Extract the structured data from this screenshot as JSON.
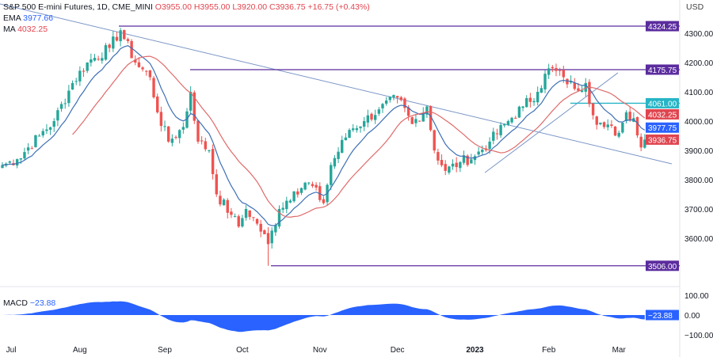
{
  "header": {
    "symbol": "S&P 500 E-mini Futures, 1D, CME_MINI",
    "o": "O3955.00",
    "h": "H3955.00",
    "l": "L3920.00",
    "c": "C3936.75",
    "change": "+16.75 (+0.43%)",
    "ema_label": "EMA",
    "ema_value": "3977.66",
    "ma_label": "MA",
    "ma_value": "4032.25",
    "macd_label": "MACD",
    "macd_value": "−23.88"
  },
  "chart_data": {
    "type": "candlestick",
    "title": "S&P 500 E-mini Futures, 1D, CME_MINI",
    "currency": "USD",
    "ylim": [
      3440,
      4420
    ],
    "yticks": [
      3600,
      3700,
      3800,
      3900,
      4000,
      4100,
      4200,
      4300
    ],
    "ytick_labels": [
      "3600.00",
      "3700.00",
      "3800.00",
      "3900.00",
      "4000.00",
      "4100.00",
      "4200.00",
      "4300.00"
    ],
    "xticks": [
      {
        "day": 1,
        "label": "Jul"
      },
      {
        "day": 21,
        "label": "Aug"
      },
      {
        "day": 44,
        "label": "Sep"
      },
      {
        "day": 65,
        "label": "Oct"
      },
      {
        "day": 86,
        "label": "Nov"
      },
      {
        "day": 107,
        "label": "Dec"
      },
      {
        "day": 128,
        "label": "2023"
      },
      {
        "day": 148,
        "label": "Feb"
      },
      {
        "day": 167,
        "label": "Mar"
      }
    ],
    "close_keypoints": [
      [
        0,
        3850
      ],
      [
        4,
        3870
      ],
      [
        10,
        3950
      ],
      [
        14,
        4000
      ],
      [
        19,
        4130
      ],
      [
        23,
        4200
      ],
      [
        29,
        4250
      ],
      [
        32,
        4310
      ],
      [
        36,
        4200
      ],
      [
        40,
        4150
      ],
      [
        42,
        4030
      ],
      [
        45,
        3930
      ],
      [
        49,
        3980
      ],
      [
        51,
        4100
      ],
      [
        53,
        3930
      ],
      [
        56,
        3900
      ],
      [
        58,
        3750
      ],
      [
        62,
        3680
      ],
      [
        64,
        3640
      ],
      [
        66,
        3700
      ],
      [
        69,
        3650
      ],
      [
        72,
        3580
      ],
      [
        75,
        3700
      ],
      [
        79,
        3760
      ],
      [
        83,
        3790
      ],
      [
        87,
        3720
      ],
      [
        89,
        3850
      ],
      [
        94,
        3970
      ],
      [
        98,
        4000
      ],
      [
        102,
        4040
      ],
      [
        107,
        4080
      ],
      [
        111,
        3990
      ],
      [
        115,
        4050
      ],
      [
        117,
        3900
      ],
      [
        120,
        3830
      ],
      [
        124,
        3860
      ],
      [
        128,
        3880
      ],
      [
        132,
        3930
      ],
      [
        137,
        4000
      ],
      [
        141,
        4050
      ],
      [
        145,
        4100
      ],
      [
        148,
        4180
      ],
      [
        152,
        4150
      ],
      [
        155,
        4110
      ],
      [
        158,
        4130
      ],
      [
        160,
        4020
      ],
      [
        163,
        3980
      ],
      [
        167,
        3960
      ],
      [
        169,
        4030
      ],
      [
        171,
        4010
      ],
      [
        173,
        3910
      ],
      [
        174,
        3937
      ]
    ],
    "horizontal_levels": [
      {
        "value": 4324.25,
        "label": "4324.25",
        "color": "#5b2c9e"
      },
      {
        "value": 4175.75,
        "label": "4175.75",
        "color": "#5b2c9e"
      },
      {
        "value": 4061.0,
        "label": "4061.00",
        "color": "#26b5c6"
      },
      {
        "value": 3506.0,
        "label": "3506.00",
        "color": "#5b2c9e"
      }
    ],
    "price_labels": [
      {
        "value": 4032.25,
        "label": "4032.25",
        "color": "#e0454f"
      },
      {
        "value": 3977.75,
        "label": "3977.75",
        "color": "#2962ff"
      },
      {
        "value": 3936.75,
        "label": "3936.75",
        "color": "#e0454f"
      }
    ],
    "macd": {
      "yticks": [
        {
          "v": 100,
          "label": "100.00"
        },
        {
          "v": 0,
          "label": "0.00"
        },
        {
          "v": -100,
          "label": "−100.00"
        }
      ],
      "last": "−23.88"
    },
    "colors": {
      "up": "#26a69a",
      "down": "#ef5350",
      "ema": "#3d6fb5",
      "ma": "#e06a6a",
      "trend": "#7b96c7",
      "macd": "#2962ff"
    }
  }
}
